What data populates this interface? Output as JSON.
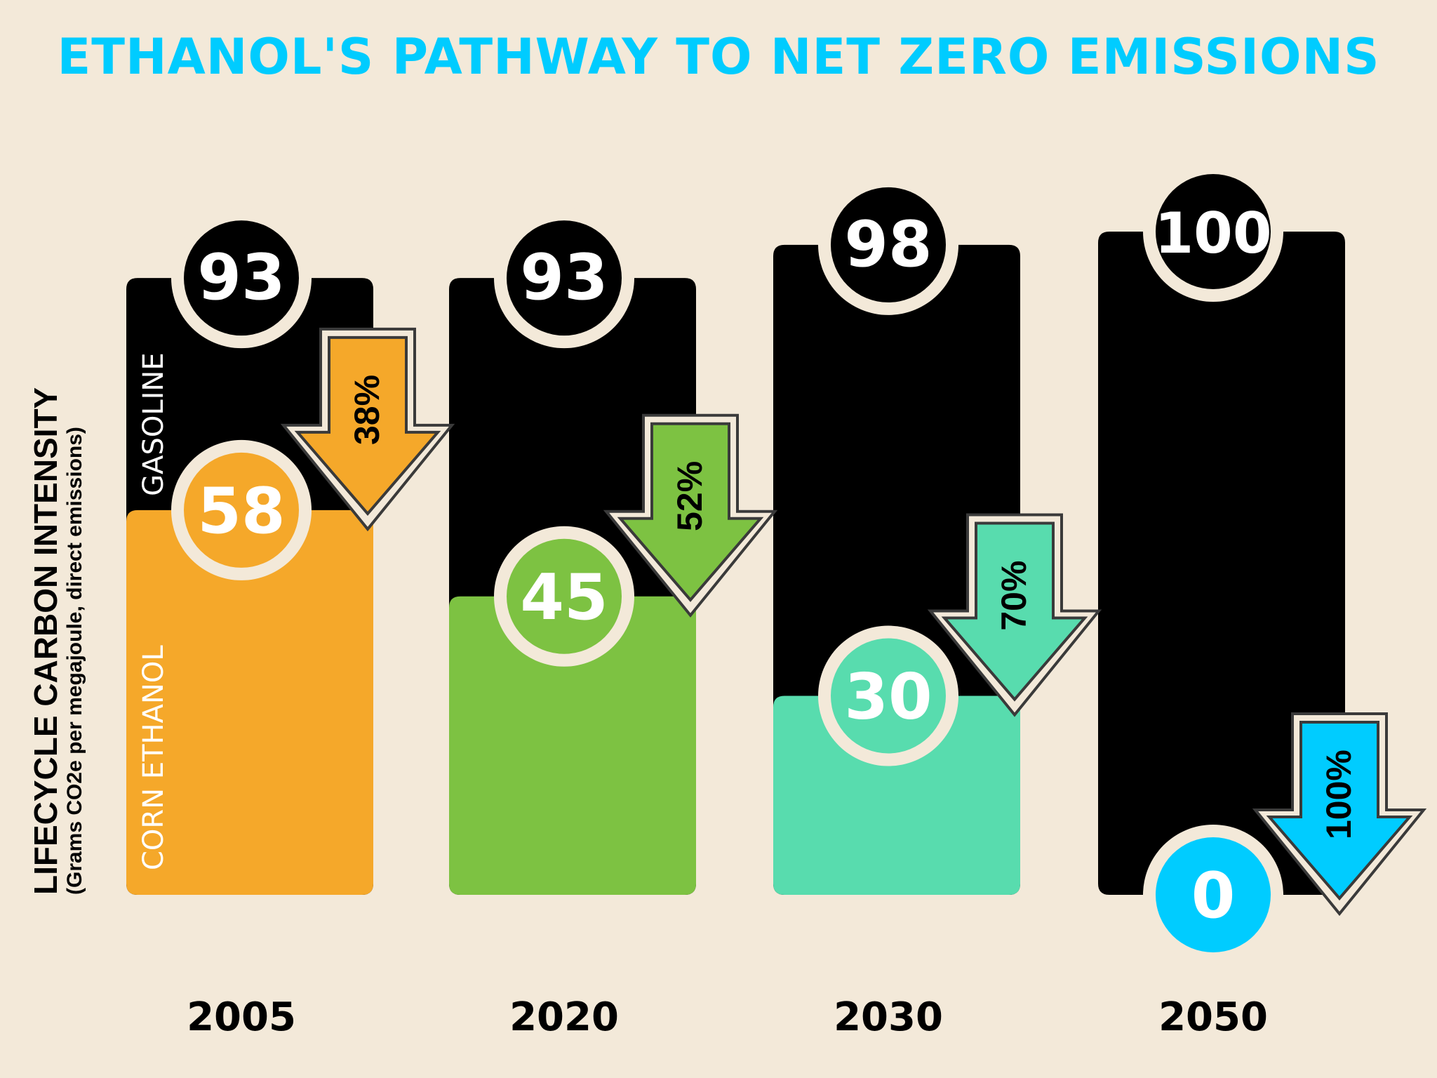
{
  "chart_data": {
    "type": "bar",
    "title": "ETHANOL'S PATHWAY TO NET ZERO EMISSIONS",
    "ylabel": "LIFECYCLE CARBON INTENSITY",
    "ylabel_sub": "(Grams CO2e per megajoule, direct emissions)",
    "xlabel": "",
    "categories": [
      "2005",
      "2020",
      "2030",
      "2050"
    ],
    "series": [
      {
        "name": "GASOLINE",
        "values": [
          93,
          93,
          98,
          100
        ],
        "color": "#000000"
      },
      {
        "name": "CORN ETHANOL",
        "values": [
          58,
          45,
          30,
          0
        ],
        "colors": [
          "#f5a82a",
          "#7dc242",
          "#58dcae",
          "#00ccff"
        ]
      }
    ],
    "reductions": [
      {
        "category": "2005",
        "label": "38%",
        "value": 38
      },
      {
        "category": "2020",
        "label": "52%",
        "value": 52
      },
      {
        "category": "2030",
        "label": "70%",
        "value": 70
      },
      {
        "category": "2050",
        "label": "100%",
        "value": 100
      }
    ],
    "ylim": [
      0,
      100
    ],
    "grid": false,
    "legend": "inline-vertical-labels-on-first-bar"
  },
  "colors": {
    "background": "#f3e9d9",
    "title": "#00ccff",
    "gasoline": "#000000",
    "ring": "#f3e9d9",
    "arrow_outline": "#3a3a3a"
  }
}
